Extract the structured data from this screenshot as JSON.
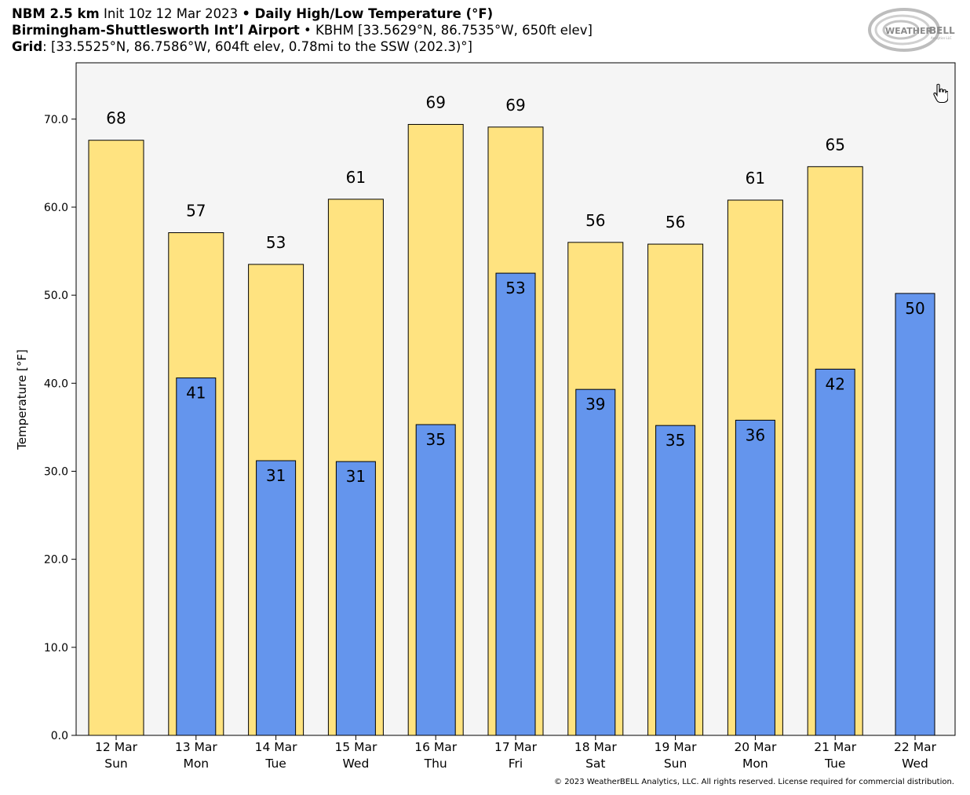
{
  "header": {
    "line1_bold_a": "NBM 2.5 km",
    "line1_regular": " Init 10z 12 Mar 2023 ",
    "line1_bullet": "•",
    "line1_bold_b": " Daily High/Low Temperature (°F)",
    "line2_bold": "Birmingham-Shuttlesworth Int’l Airport",
    "line2_regular": " • KBHM [33.5629°N, 86.7535°W, 650ft elev]",
    "line3_bold": "Grid",
    "line3_regular": ": [33.5525°N, 86.7586°W, 604ft elev, 0.78mi to the SSW (202.3)°]"
  },
  "logo": {
    "text_a": "WEATHER",
    "text_b": "BELL",
    "sub": "Analytics LLC"
  },
  "copyright": "© 2023 WeatherBELL Analytics, LLC. All rights reserved. License required for commercial distribution.",
  "chart_data": {
    "type": "bar",
    "ylabel": "Temperature [°F]",
    "ylim": [
      0,
      76.4
    ],
    "yticks": [
      "0.0",
      "10.0",
      "20.0",
      "30.0",
      "40.0",
      "50.0",
      "60.0",
      "70.0"
    ],
    "categories": [
      [
        "12 Mar",
        "Sun"
      ],
      [
        "13 Mar",
        "Mon"
      ],
      [
        "14 Mar",
        "Tue"
      ],
      [
        "15 Mar",
        "Wed"
      ],
      [
        "16 Mar",
        "Thu"
      ],
      [
        "17 Mar",
        "Fri"
      ],
      [
        "18 Mar",
        "Sat"
      ],
      [
        "19 Mar",
        "Sun"
      ],
      [
        "20 Mar",
        "Mon"
      ],
      [
        "21 Mar",
        "Tue"
      ],
      [
        "22 Mar",
        "Wed"
      ]
    ],
    "series": [
      {
        "role": "high",
        "color": "#FFE380",
        "values": [
          67.6,
          57.1,
          53.5,
          60.9,
          69.4,
          69.1,
          56.0,
          55.8,
          60.8,
          64.6,
          null
        ],
        "labels": [
          "68",
          "57",
          "53",
          "61",
          "69",
          "69",
          "56",
          "56",
          "61",
          "65",
          null
        ]
      },
      {
        "role": "low",
        "color": "#6495ED",
        "values": [
          null,
          40.6,
          31.2,
          31.1,
          35.3,
          52.5,
          39.3,
          35.2,
          35.8,
          41.6,
          50.2
        ],
        "labels": [
          null,
          "41",
          "31",
          "31",
          "35",
          "53",
          "39",
          "35",
          "36",
          "42",
          "50"
        ]
      }
    ],
    "plot_background": "#F5F5F5",
    "grid": false
  }
}
